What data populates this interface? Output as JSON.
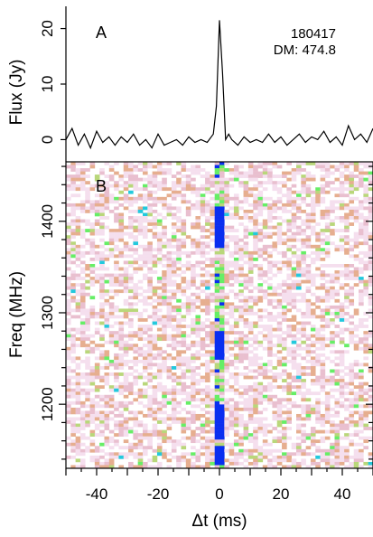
{
  "chart_data": [
    {
      "type": "line",
      "panel_label": "A",
      "annotation_lines": [
        "180417",
        "DM: 474.8"
      ],
      "ylabel": "Flux (Jy)",
      "xlim": [
        -50,
        50
      ],
      "ylim": [
        -4,
        24
      ],
      "y_ticks": [
        0,
        10,
        20
      ],
      "series": [
        {
          "x": [
            -50,
            -48,
            -46,
            -44,
            -42,
            -40,
            -38,
            -36,
            -34,
            -32,
            -30,
            -28,
            -26,
            -24,
            -22,
            -20,
            -18,
            -16,
            -14,
            -12,
            -10,
            -8,
            -6,
            -4,
            -2,
            -1,
            0,
            1,
            2,
            3,
            4,
            6,
            8,
            10,
            12,
            14,
            16,
            18,
            20,
            22,
            24,
            26,
            28,
            30,
            32,
            34,
            36,
            38,
            40,
            42,
            44,
            46,
            48,
            50
          ],
          "values": [
            0,
            2,
            -1,
            1,
            -1.5,
            1.5,
            -0.5,
            0.5,
            -1,
            0.5,
            -0.5,
            1,
            -1,
            0,
            -1.5,
            1,
            -1,
            -0.5,
            0,
            -1,
            0.5,
            -0.5,
            0,
            -0.5,
            1,
            6,
            21.5,
            12,
            0,
            1,
            0,
            -1,
            0.5,
            -0.5,
            0,
            -0.5,
            1,
            -0.5,
            0.5,
            -1,
            0,
            1,
            -0.5,
            0.5,
            0,
            1.5,
            -0.5,
            0.5,
            -1,
            2.5,
            0,
            1,
            -0.5,
            2
          ]
        }
      ]
    },
    {
      "type": "heatmap",
      "panel_label": "B",
      "xlabel": "Δt (ms)",
      "ylabel": "Freq (MHz)",
      "xlim": [
        -50,
        50
      ],
      "ylim": [
        1130,
        1465
      ],
      "x_ticks": [
        -40,
        -20,
        0,
        20,
        40
      ],
      "y_ticks": [
        1200,
        1300,
        1400
      ],
      "burst_time_ms": 0,
      "burst_bands_mhz": [
        [
          1370,
          1415
        ],
        [
          1250,
          1280
        ],
        [
          1160,
          1200
        ],
        [
          1135,
          1155
        ]
      ],
      "colors": [
        "#f5dfee",
        "#e9bfcf",
        "#e6ae8f",
        "#b9d77a",
        "#66ee66",
        "#22c9dd",
        "#0a2ef0"
      ]
    }
  ]
}
